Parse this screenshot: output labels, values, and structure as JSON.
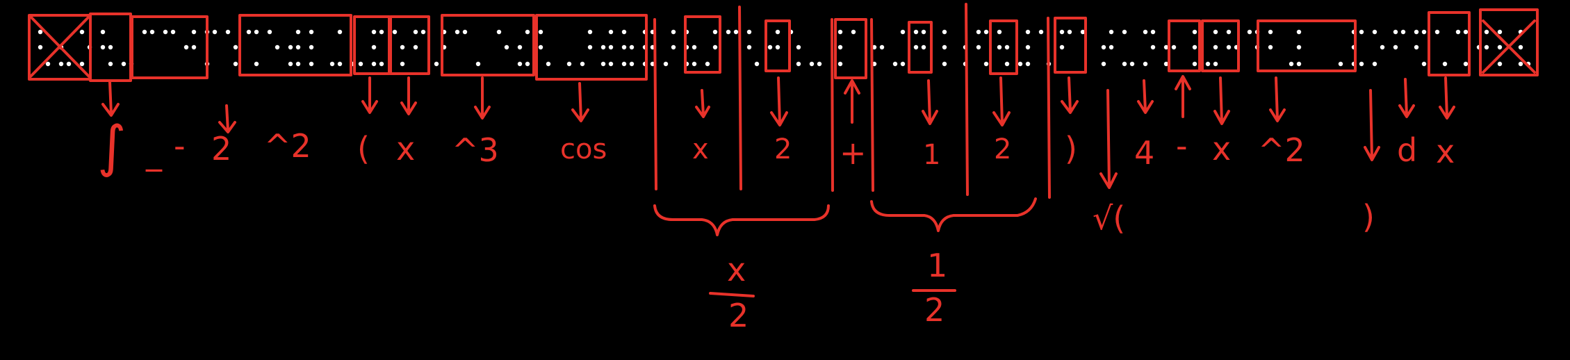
{
  "colors": {
    "background": "#000000",
    "ink": "#e8322a",
    "braille_dot": "#ffffff"
  },
  "labels": {
    "integral": "∫",
    "underscore": "_",
    "minus_a": "-",
    "neg2": "2",
    "caret2": "^2",
    "open_paren": "(",
    "x1": "x",
    "caret3": "^3",
    "cos": "cos",
    "frac1_num": "x",
    "frac1_den": "2",
    "plus": "+",
    "frac2_num": "1",
    "frac2_den": "2",
    "close_paren": ")",
    "four": "4",
    "minus_b": "-",
    "x2": "x",
    "caret2b": "^2",
    "d": "d",
    "x3": "x",
    "sqrt_open": "√(",
    "sqrt_close": ")",
    "frac1_result_num": "x",
    "frac1_result_den": "2",
    "frac2_result_num": "1",
    "frac2_result_den": "2"
  }
}
